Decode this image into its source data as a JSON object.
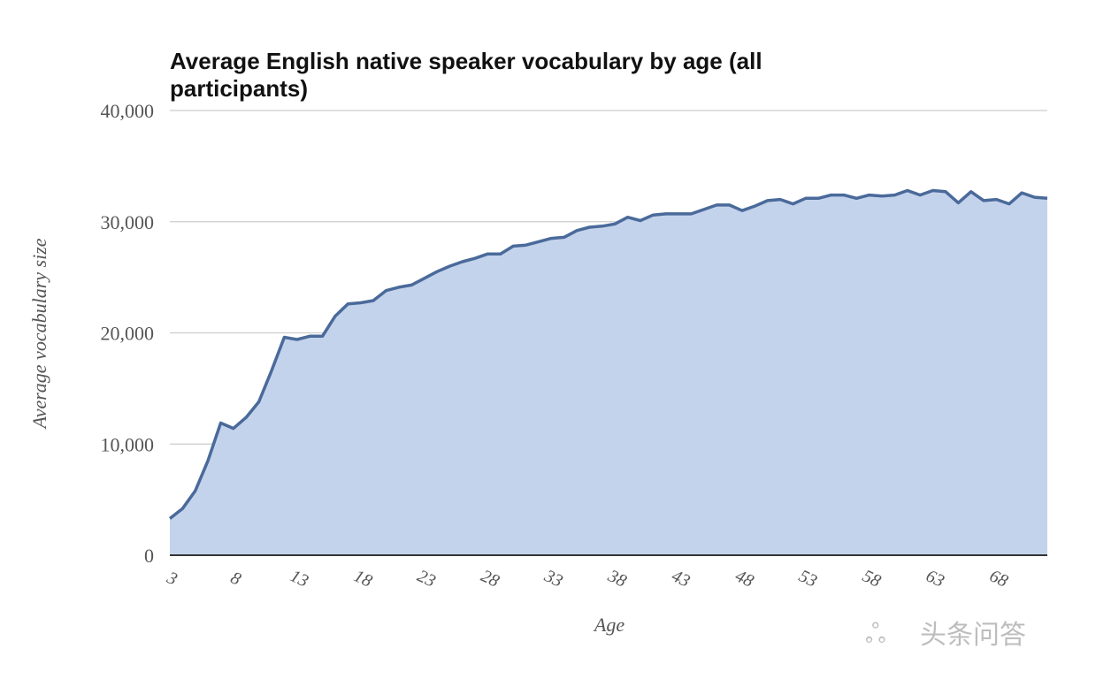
{
  "chart_data": {
    "type": "area",
    "title_lines": [
      "Average English native speaker vocabulary by age  (all",
      "participants)"
    ],
    "xlabel": "Age",
    "ylabel": "Average vocabulary size",
    "ylim": [
      0,
      40000
    ],
    "y_ticks": [
      "0",
      "10,000",
      "20,000",
      "30,000",
      "40,000"
    ],
    "y_tick_values": [
      0,
      10000,
      20000,
      30000,
      40000
    ],
    "x_ticks": [
      "3",
      "8",
      "13",
      "18",
      "23",
      "28",
      "33",
      "38",
      "43",
      "48",
      "53",
      "58",
      "63",
      "68"
    ],
    "x_tick_values": [
      3,
      8,
      13,
      18,
      23,
      28,
      33,
      38,
      43,
      48,
      53,
      58,
      63,
      68
    ],
    "xlim": [
      3,
      72
    ],
    "grid": true,
    "colors": {
      "line": "#4a6a9a",
      "fill": "#c4d3ec",
      "grid": "#cccccc",
      "axis": "#333333"
    },
    "series": [
      {
        "x": [
          3,
          4,
          5,
          6,
          7,
          8,
          9,
          10,
          11,
          12,
          13,
          14,
          15,
          16,
          17,
          18,
          19,
          20,
          21,
          22,
          23,
          24,
          25,
          26,
          27,
          28,
          29,
          30,
          31,
          32,
          33,
          34,
          35,
          36,
          37,
          38,
          39,
          40,
          41,
          42,
          43,
          44,
          45,
          46,
          47,
          48,
          49,
          50,
          51,
          52,
          53,
          54,
          55,
          56,
          57,
          58,
          59,
          60,
          61,
          62,
          63,
          64,
          65,
          66,
          67,
          68,
          69,
          70,
          71,
          72
        ],
        "values": [
          3300,
          4200,
          5800,
          8500,
          11900,
          11400,
          12400,
          13800,
          16600,
          19600,
          19400,
          19700,
          19700,
          21500,
          22600,
          22700,
          22900,
          23800,
          24100,
          24300,
          24900,
          25500,
          26000,
          26400,
          26700,
          27100,
          27100,
          27800,
          27900,
          28200,
          28500,
          28600,
          29200,
          29500,
          29600,
          29800,
          30400,
          30100,
          30600,
          30700,
          30700,
          30700,
          31100,
          31500,
          31500,
          31000,
          31400,
          31900,
          32000,
          31600,
          32100,
          32100,
          32400,
          32400,
          32100,
          32400,
          32300,
          32400,
          32800,
          32400,
          32800,
          32700,
          31700,
          32700,
          31900,
          32000,
          31600,
          32600,
          32200,
          32100
        ]
      }
    ]
  },
  "watermark": "头条问答"
}
